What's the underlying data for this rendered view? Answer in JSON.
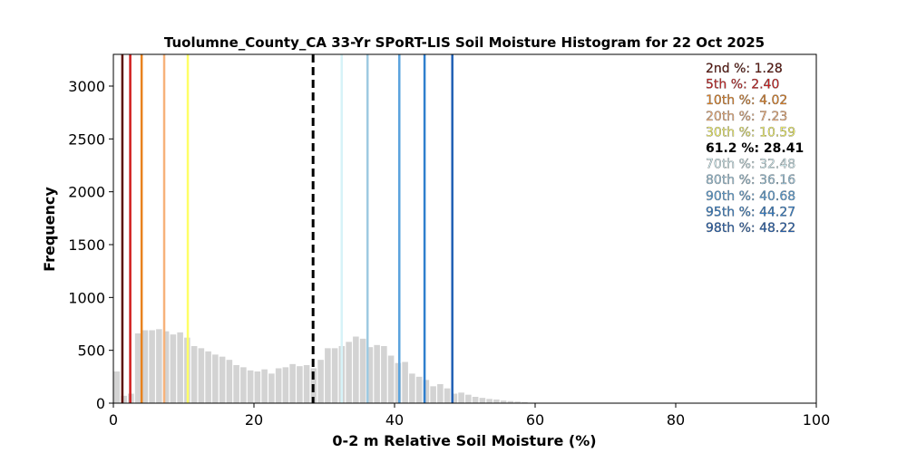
{
  "chart_data": {
    "type": "bar",
    "title": "Tuolumne_County_CA 33-Yr SPoRT-LIS Soil Moisture Histogram for 22 Oct 2025",
    "xlabel": "0-2 m Relative Soil Moisture (%)",
    "ylabel": "Frequency",
    "xlim": [
      0,
      100
    ],
    "ylim": [
      0,
      3300
    ],
    "xticks": [
      0,
      20,
      40,
      60,
      80,
      100
    ],
    "yticks": [
      0,
      500,
      1000,
      1500,
      2000,
      2500,
      3000
    ],
    "bar_color": "#d3d3d3",
    "bin_width": 1,
    "histogram": {
      "bin_centers": [
        0.5,
        1.5,
        2.5,
        3.5,
        4.5,
        5.5,
        6.5,
        7.5,
        8.5,
        9.5,
        10.5,
        11.5,
        12.5,
        13.5,
        14.5,
        15.5,
        16.5,
        17.5,
        18.5,
        19.5,
        20.5,
        21.5,
        22.5,
        23.5,
        24.5,
        25.5,
        26.5,
        27.5,
        28.5,
        29.5,
        30.5,
        31.5,
        32.5,
        33.5,
        34.5,
        35.5,
        36.5,
        37.5,
        38.5,
        39.5,
        40.5,
        41.5,
        42.5,
        43.5,
        44.5,
        45.5,
        46.5,
        47.5,
        48.5,
        49.5,
        50.5,
        51.5,
        52.5,
        53.5,
        54.5,
        55.5,
        56.5,
        57.5,
        58.5
      ],
      "frequencies": [
        300,
        70,
        90,
        660,
        690,
        690,
        700,
        680,
        650,
        670,
        620,
        540,
        520,
        490,
        460,
        440,
        410,
        360,
        340,
        310,
        300,
        320,
        280,
        330,
        340,
        370,
        350,
        360,
        330,
        410,
        520,
        520,
        540,
        580,
        630,
        610,
        530,
        550,
        540,
        450,
        380,
        390,
        280,
        250,
        220,
        160,
        180,
        140,
        90,
        100,
        80,
        60,
        50,
        40,
        35,
        25,
        20,
        15,
        10
      ]
    },
    "percentile_lines": [
      {
        "label": "2nd %",
        "value": 1.28,
        "value_text": "1.28",
        "color": "#5c0a00",
        "style": "solid"
      },
      {
        "label": "5th %",
        "value": 2.4,
        "value_text": "2.40",
        "color": "#d01c1c",
        "style": "solid"
      },
      {
        "label": "10th %",
        "value": 4.02,
        "value_text": "4.02",
        "color": "#e8821e",
        "style": "solid"
      },
      {
        "label": "20th %",
        "value": 7.23,
        "value_text": "7.23",
        "color": "#f7b27a",
        "style": "solid"
      },
      {
        "label": "30th %",
        "value": 10.59,
        "value_text": "10.59",
        "color": "#ffff66",
        "style": "solid"
      },
      {
        "label": "61.2 %",
        "value": 28.41,
        "value_text": "28.41",
        "color": "#000000",
        "style": "dashed"
      },
      {
        "label": "70th %",
        "value": 32.48,
        "value_text": "32.48",
        "color": "#d6f3f8",
        "style": "solid"
      },
      {
        "label": "80th %",
        "value": 36.16,
        "value_text": "36.16",
        "color": "#9ecae1",
        "style": "solid"
      },
      {
        "label": "90th %",
        "value": 40.68,
        "value_text": "40.68",
        "color": "#5aa3dd",
        "style": "solid"
      },
      {
        "label": "95th %",
        "value": 44.27,
        "value_text": "44.27",
        "color": "#2f7fce",
        "style": "solid"
      },
      {
        "label": "98th %",
        "value": 48.22,
        "value_text": "48.22",
        "color": "#1f5fb4",
        "style": "solid"
      }
    ],
    "legend_position": "top-right",
    "grid": false
  }
}
